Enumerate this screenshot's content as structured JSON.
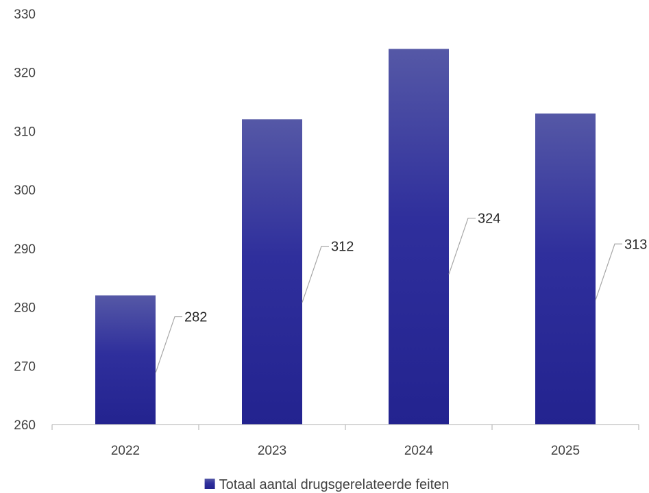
{
  "chart_data": {
    "type": "bar",
    "categories": [
      "2022",
      "2023",
      "2024",
      "2025"
    ],
    "series": [
      {
        "name": "Totaal aantal drugsgerelateerde feiten",
        "values": [
          282,
          312,
          324,
          313
        ]
      }
    ],
    "data_labels": [
      "282",
      "312",
      "324",
      "313"
    ],
    "ylim": [
      260,
      330
    ],
    "yticks": [
      "260",
      "270",
      "280",
      "290",
      "300",
      "310",
      "320",
      "330"
    ],
    "grid": false,
    "legend_position": "bottom",
    "colors": {
      "bar_top": "#5558a6",
      "bar_bottom": "#23238f",
      "axis": "#bfbfbf",
      "leader": "#a6a6a6"
    }
  }
}
